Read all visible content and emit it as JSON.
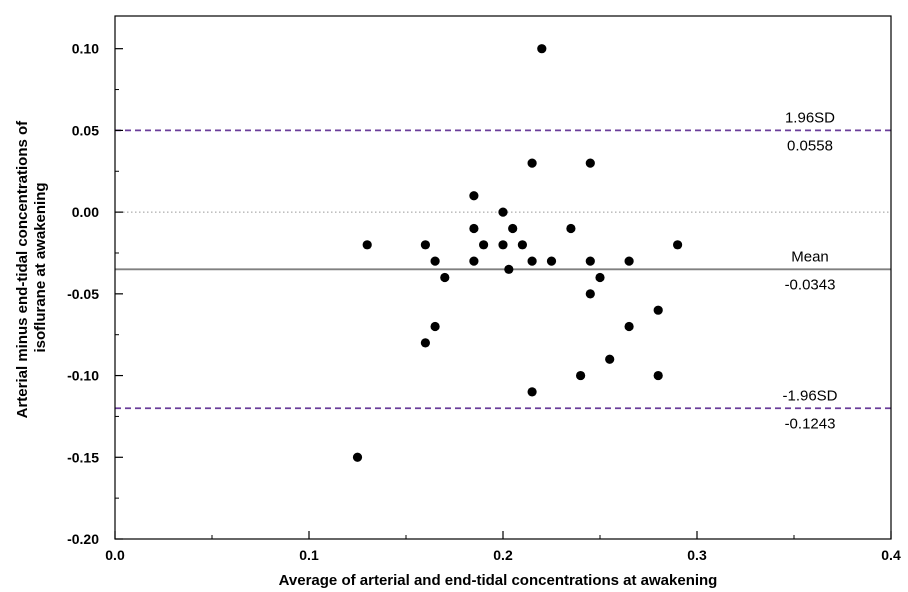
{
  "chart_data": {
    "type": "scatter",
    "title": "",
    "xlabel": "Average of arterial and end-tidal concentrations at awakening",
    "ylabel_lines": [
      "Arterial minus end-tidal concentrations of",
      "isoflurane at awakening"
    ],
    "xlim": [
      0.0,
      0.4
    ],
    "ylim": [
      -0.2,
      0.12
    ],
    "x_ticks": [
      0.0,
      0.1,
      0.2,
      0.3,
      0.4
    ],
    "x_tick_labels": [
      "0.0",
      "0.1",
      "0.2",
      "0.3",
      "0.4"
    ],
    "y_ticks": [
      -0.2,
      -0.15,
      -0.1,
      -0.05,
      0.0,
      0.05,
      0.1
    ],
    "y_tick_labels": [
      "-0.20",
      "-0.15",
      "-0.10",
      "-0.05",
      "0.00",
      "0.05",
      "0.10"
    ],
    "grid": false,
    "points": [
      {
        "x": 0.22,
        "y": 0.1
      },
      {
        "x": 0.215,
        "y": 0.03
      },
      {
        "x": 0.245,
        "y": 0.03
      },
      {
        "x": 0.185,
        "y": 0.01
      },
      {
        "x": 0.2,
        "y": 0.0
      },
      {
        "x": 0.185,
        "y": -0.01
      },
      {
        "x": 0.205,
        "y": -0.01
      },
      {
        "x": 0.235,
        "y": -0.01
      },
      {
        "x": 0.13,
        "y": -0.02
      },
      {
        "x": 0.16,
        "y": -0.02
      },
      {
        "x": 0.19,
        "y": -0.02
      },
      {
        "x": 0.2,
        "y": -0.02
      },
      {
        "x": 0.21,
        "y": -0.02
      },
      {
        "x": 0.29,
        "y": -0.02
      },
      {
        "x": 0.165,
        "y": -0.03
      },
      {
        "x": 0.185,
        "y": -0.03
      },
      {
        "x": 0.215,
        "y": -0.03
      },
      {
        "x": 0.225,
        "y": -0.03
      },
      {
        "x": 0.245,
        "y": -0.03
      },
      {
        "x": 0.265,
        "y": -0.03
      },
      {
        "x": 0.203,
        "y": -0.035
      },
      {
        "x": 0.17,
        "y": -0.04
      },
      {
        "x": 0.25,
        "y": -0.04
      },
      {
        "x": 0.245,
        "y": -0.05
      },
      {
        "x": 0.28,
        "y": -0.06
      },
      {
        "x": 0.165,
        "y": -0.07
      },
      {
        "x": 0.265,
        "y": -0.07
      },
      {
        "x": 0.16,
        "y": -0.08
      },
      {
        "x": 0.255,
        "y": -0.09
      },
      {
        "x": 0.24,
        "y": -0.1
      },
      {
        "x": 0.28,
        "y": -0.1
      },
      {
        "x": 0.215,
        "y": -0.11
      },
      {
        "x": 0.125,
        "y": -0.15
      }
    ],
    "reference_lines": [
      {
        "name": "upper-limit",
        "y": 0.05,
        "label_top": "1.96SD",
        "label_bottom": "0.0558",
        "style": "dashed",
        "color": "#6a3d9a"
      },
      {
        "name": "zero",
        "y": 0.0,
        "label_top": "",
        "label_bottom": "",
        "style": "dotted",
        "color": "#999999"
      },
      {
        "name": "mean",
        "y": -0.035,
        "label_top": "Mean",
        "label_bottom": "-0.0343",
        "style": "solid",
        "color": "#808080"
      },
      {
        "name": "lower-limit",
        "y": -0.12,
        "label_top": "-1.96SD",
        "label_bottom": "-0.1243",
        "style": "dashed",
        "color": "#6a3d9a"
      }
    ],
    "point_color": "#000000"
  }
}
